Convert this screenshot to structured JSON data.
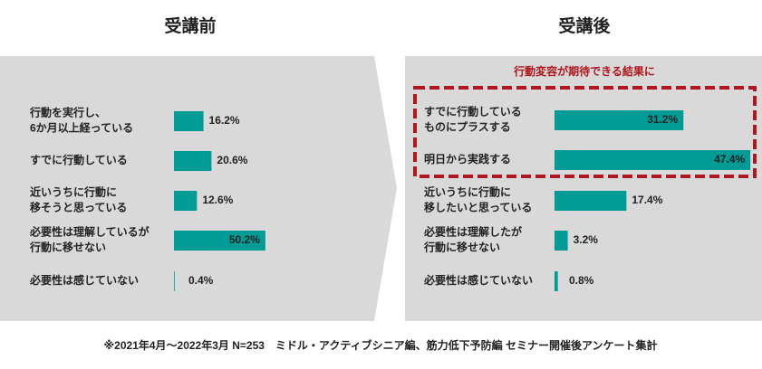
{
  "chart_data": [
    {
      "type": "bar",
      "orientation": "horizontal",
      "title": "受講前",
      "color": "#009b95",
      "categories": [
        [
          "行動を実行し、",
          "6か月以上経っている"
        ],
        [
          "すでに行動している"
        ],
        [
          "近いうちに行動に",
          "移そうと思っている"
        ],
        [
          "必要性は理解しているが",
          "行動に移せない"
        ],
        [
          "必要性は感じていない"
        ]
      ],
      "values": [
        16.2,
        20.6,
        12.6,
        50.2,
        0.4
      ],
      "value_labels": [
        "16.2%",
        "20.6%",
        "12.6%",
        "50.2%",
        "0.4%"
      ]
    },
    {
      "type": "bar",
      "orientation": "horizontal",
      "title": "受講後",
      "color": "#009b95",
      "annotation": "行動変容が期待できる結果に",
      "categories": [
        [
          "すでに行動している",
          "ものにプラスする"
        ],
        [
          "明日から実践する"
        ],
        [
          "近いうちに行動に",
          "移したいと思っている"
        ],
        [
          "必要性は理解したが",
          "行動に移せない"
        ],
        [
          "必要性は感じていない"
        ]
      ],
      "values": [
        31.2,
        47.4,
        17.4,
        3.2,
        0.8
      ],
      "value_labels": [
        "31.2%",
        "47.4%",
        "17.4%",
        "3.2%",
        "0.8%"
      ]
    }
  ],
  "footnote": "※2021年4月～2022年3月 N=253　ミドル・アクティブシニア編、筋力低下予防編 セミナー開催後アンケート集計"
}
